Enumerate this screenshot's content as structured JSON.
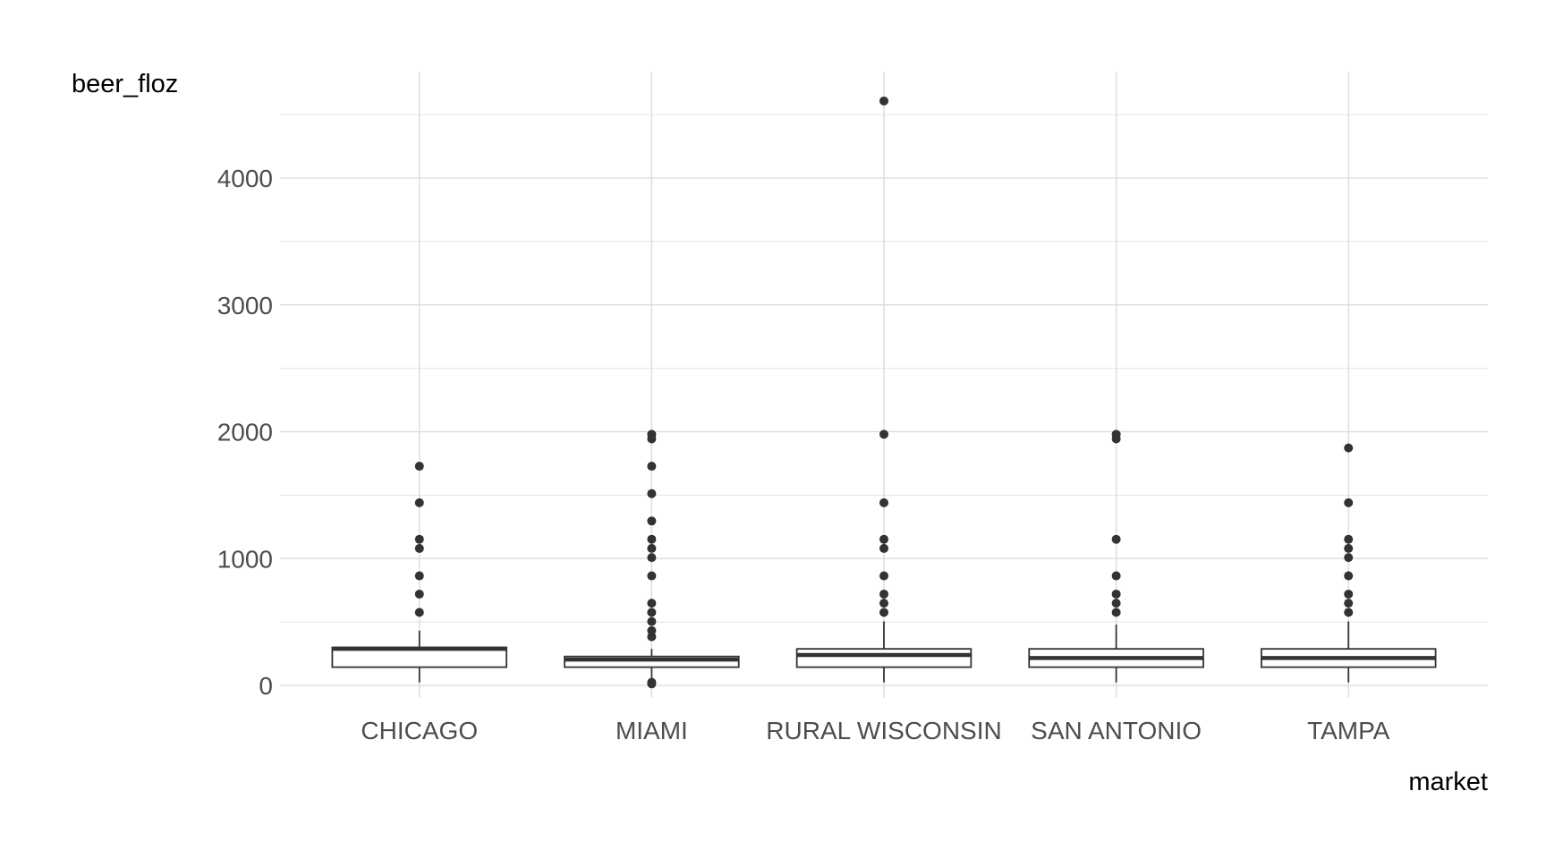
{
  "chart_data": {
    "type": "boxplot",
    "title": "",
    "xlabel": "market",
    "ylabel": "beer_floz",
    "ylim": [
      -200,
      4800
    ],
    "yticks": [
      0,
      1000,
      2000,
      3000,
      4000
    ],
    "ytick_labels": [
      "0",
      "1000",
      "2000",
      "3000",
      "4000"
    ],
    "grid": true,
    "categories": [
      "CHICAGO",
      "MIAMI",
      "RURAL WISCONSIN",
      "SAN ANTONIO",
      "TAMPA"
    ],
    "boxes": [
      {
        "category": "CHICAGO",
        "whisker_low": 24,
        "q1": 144,
        "median": 288,
        "q3": 300,
        "whisker_high": 432,
        "outliers": [
          576,
          720,
          864,
          1080,
          1152,
          1440,
          1728
        ]
      },
      {
        "category": "MIAMI",
        "whisker_low": 50,
        "q1": 144,
        "median": 204,
        "q3": 228,
        "whisker_high": 288,
        "outliers": [
          12,
          24,
          384,
          432,
          504,
          576,
          648,
          864,
          1008,
          1080,
          1152,
          1296,
          1512,
          1728,
          1944,
          1980
        ]
      },
      {
        "category": "RURAL WISCONSIN",
        "whisker_low": 24,
        "q1": 144,
        "median": 240,
        "q3": 288,
        "whisker_high": 504,
        "outliers": [
          576,
          648,
          720,
          864,
          1080,
          1152,
          1440,
          1980,
          4608
        ]
      },
      {
        "category": "SAN ANTONIO",
        "whisker_low": 24,
        "q1": 144,
        "median": 216,
        "q3": 288,
        "whisker_high": 480,
        "outliers": [
          576,
          648,
          720,
          864,
          1152,
          1944,
          1980
        ]
      },
      {
        "category": "TAMPA",
        "whisker_low": 24,
        "q1": 144,
        "median": 216,
        "q3": 288,
        "whisker_high": 504,
        "outliers": [
          576,
          648,
          720,
          864,
          1008,
          1080,
          1152,
          1440,
          1872
        ]
      }
    ]
  }
}
